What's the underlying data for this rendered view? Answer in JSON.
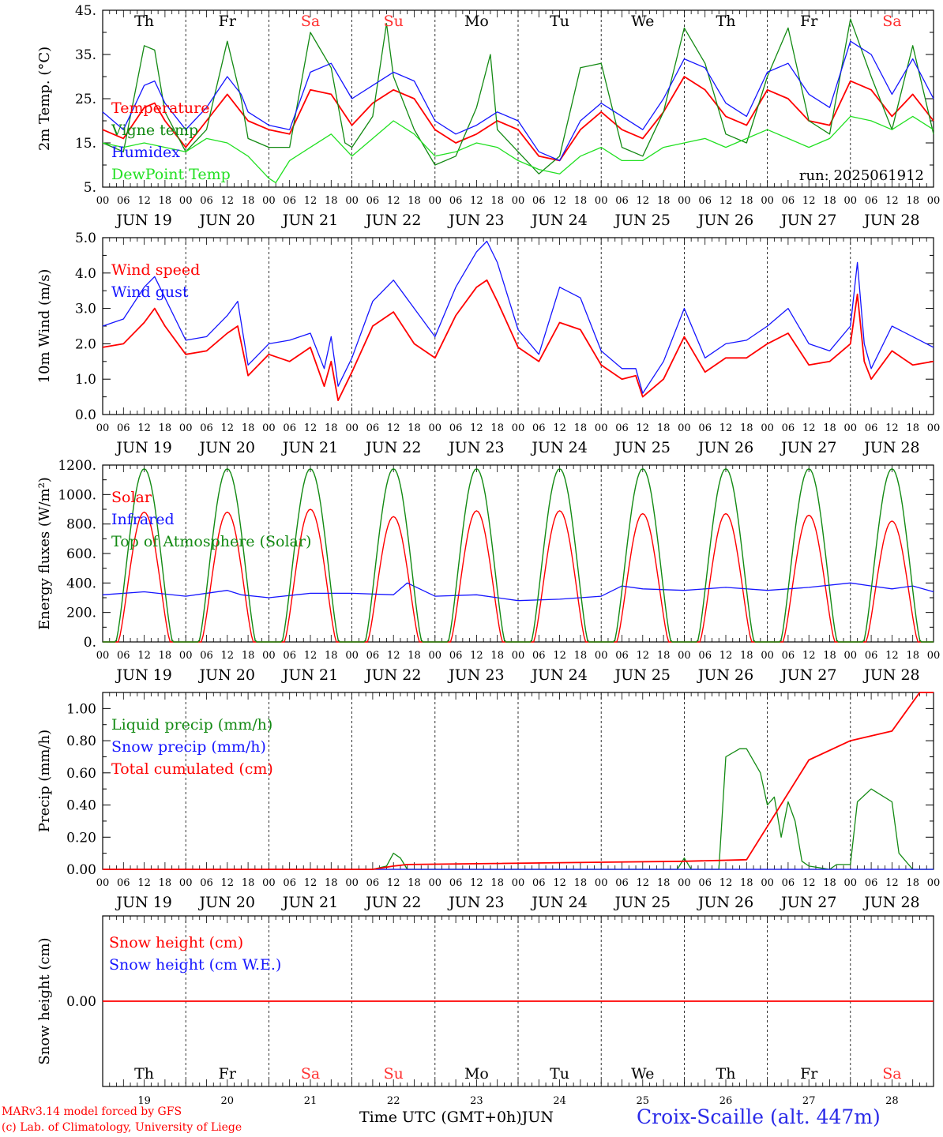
{
  "page": {
    "credit_line1": "MARv3.14 model forced by GFS",
    "credit_line2": "(c) Lab. of Climatology, University of Liege",
    "time_axis_label": "Time UTC (GMT+0h)",
    "month_label": "JUN",
    "station": "Croix-Scaille (alt. 447m)",
    "run_label": "run: 2025061912"
  },
  "colors": {
    "red": "#ff0000",
    "green": "#138a13",
    "blue": "#1515ff",
    "lightgreen": "#22e022",
    "axis": "#000000",
    "weekend": "#ff3030"
  },
  "days": [
    {
      "abbr": "Th",
      "date": "JUN 19",
      "num": "19",
      "weekend": false
    },
    {
      "abbr": "Fr",
      "date": "JUN 20",
      "num": "20",
      "weekend": false
    },
    {
      "abbr": "Sa",
      "date": "JUN 21",
      "num": "21",
      "weekend": true
    },
    {
      "abbr": "Su",
      "date": "JUN 22",
      "num": "22",
      "weekend": true
    },
    {
      "abbr": "Mo",
      "date": "JUN 23",
      "num": "23",
      "weekend": false
    },
    {
      "abbr": "Tu",
      "date": "JUN 24",
      "num": "24",
      "weekend": false
    },
    {
      "abbr": "We",
      "date": "JUN 25",
      "num": "25",
      "weekend": false
    },
    {
      "abbr": "Th",
      "date": "JUN 26",
      "num": "26",
      "weekend": false
    },
    {
      "abbr": "Fr",
      "date": "JUN 27",
      "num": "27",
      "weekend": false
    },
    {
      "abbr": "Sa",
      "date": "JUN 28",
      "num": "28",
      "weekend": true
    }
  ],
  "hour_ticks": [
    "00",
    "06",
    "12",
    "18"
  ],
  "chart_data": [
    {
      "type": "line",
      "ylabel": "2m Temp. (°C)",
      "ylim": [
        5,
        45
      ],
      "yticks": [
        "5.",
        "15.",
        "25.",
        "35.",
        "45."
      ],
      "x_unit": "hours since JUN 19 00 UTC",
      "series": [
        {
          "name": "Temperature",
          "color": "red",
          "x": [
            0,
            6,
            12,
            15,
            18,
            24,
            30,
            36,
            40,
            42,
            48,
            54,
            60,
            66,
            72,
            78,
            84,
            90,
            96,
            102,
            108,
            114,
            120,
            126,
            132,
            138,
            144,
            150,
            156,
            162,
            168,
            174,
            180,
            186,
            192,
            198,
            204,
            210,
            216,
            222,
            228,
            234,
            240
          ],
          "y": [
            18,
            16,
            23,
            24,
            20,
            14,
            20,
            26,
            22,
            20,
            18,
            17,
            27,
            26,
            19,
            24,
            27,
            25,
            18,
            15,
            17,
            20,
            18,
            12,
            11,
            18,
            22,
            18,
            16,
            22,
            30,
            27,
            21,
            19,
            27,
            25,
            20,
            19,
            29,
            27,
            21,
            26,
            20
          ]
        },
        {
          "name": "Vigne temp",
          "color": "green",
          "x": [
            0,
            6,
            12,
            15,
            18,
            24,
            30,
            36,
            40,
            42,
            48,
            54,
            60,
            66,
            70,
            72,
            78,
            82,
            84,
            90,
            96,
            102,
            108,
            112,
            114,
            120,
            126,
            132,
            138,
            144,
            150,
            156,
            162,
            168,
            174,
            180,
            186,
            192,
            198,
            204,
            210,
            216,
            222,
            228,
            234,
            240
          ],
          "y": [
            15,
            13,
            37,
            36,
            22,
            13,
            18,
            38,
            25,
            16,
            14,
            14,
            40,
            32,
            15,
            14,
            21,
            42,
            30,
            18,
            10,
            12,
            23,
            35,
            18,
            13,
            8,
            12,
            32,
            33,
            14,
            12,
            22,
            41,
            33,
            17,
            15,
            30,
            41,
            20,
            17,
            43,
            30,
            18,
            37,
            17
          ]
        },
        {
          "name": "Humidex",
          "color": "blue",
          "x": [
            0,
            6,
            12,
            15,
            18,
            24,
            30,
            36,
            40,
            42,
            48,
            54,
            60,
            66,
            72,
            78,
            84,
            90,
            96,
            102,
            108,
            114,
            120,
            126,
            132,
            138,
            144,
            150,
            156,
            162,
            168,
            174,
            180,
            186,
            192,
            198,
            204,
            210,
            216,
            222,
            228,
            234,
            240
          ],
          "y": [
            22,
            18,
            28,
            29,
            24,
            18,
            23,
            30,
            26,
            22,
            19,
            18,
            31,
            33,
            25,
            28,
            31,
            29,
            20,
            17,
            19,
            22,
            20,
            13,
            11,
            20,
            24,
            21,
            18,
            25,
            34,
            32,
            24,
            21,
            31,
            33,
            26,
            23,
            38,
            35,
            26,
            34,
            25
          ]
        },
        {
          "name": "DewPoint Temp",
          "color": "lightgreen",
          "x": [
            0,
            6,
            12,
            18,
            24,
            30,
            36,
            42,
            48,
            50,
            54,
            60,
            66,
            72,
            78,
            84,
            90,
            96,
            102,
            108,
            114,
            120,
            126,
            132,
            138,
            144,
            150,
            156,
            162,
            168,
            174,
            180,
            186,
            192,
            198,
            204,
            210,
            216,
            222,
            228,
            234,
            240
          ],
          "y": [
            15,
            14,
            15,
            14,
            13,
            16,
            15,
            12,
            7,
            6,
            11,
            14,
            17,
            12,
            16,
            20,
            17,
            12,
            13,
            15,
            14,
            11,
            9,
            8,
            12,
            14,
            11,
            11,
            14,
            15,
            16,
            14,
            16,
            18,
            16,
            14,
            16,
            21,
            20,
            18,
            21,
            18
          ]
        }
      ]
    },
    {
      "type": "line",
      "ylabel": "10m Wind (m/s)",
      "ylim": [
        0,
        5
      ],
      "yticks": [
        "0.0",
        "1.0",
        "2.0",
        "3.0",
        "4.0",
        "5.0"
      ],
      "x_unit": "hours since JUN 19 00 UTC",
      "series": [
        {
          "name": "Wind speed",
          "color": "red",
          "x": [
            0,
            6,
            12,
            15,
            18,
            24,
            30,
            36,
            39,
            42,
            48,
            54,
            60,
            64,
            66,
            68,
            72,
            78,
            84,
            90,
            96,
            102,
            108,
            111,
            114,
            120,
            126,
            132,
            138,
            144,
            150,
            154,
            156,
            162,
            168,
            174,
            180,
            186,
            192,
            198,
            204,
            210,
            216,
            218,
            220,
            222,
            228,
            234,
            240
          ],
          "y": [
            1.9,
            2.0,
            2.6,
            3.0,
            2.5,
            1.7,
            1.8,
            2.3,
            2.5,
            1.1,
            1.7,
            1.5,
            1.9,
            0.8,
            1.5,
            0.4,
            1.2,
            2.5,
            2.9,
            2.0,
            1.6,
            2.8,
            3.6,
            3.8,
            3.2,
            1.9,
            1.5,
            2.6,
            2.4,
            1.4,
            1.0,
            1.1,
            0.5,
            1.0,
            2.2,
            1.2,
            1.6,
            1.6,
            2.0,
            2.3,
            1.4,
            1.5,
            2.0,
            3.4,
            1.5,
            1.0,
            1.8,
            1.4,
            1.5
          ]
        },
        {
          "name": "Wind gust",
          "color": "blue",
          "x": [
            0,
            6,
            12,
            15,
            18,
            24,
            30,
            36,
            39,
            42,
            48,
            54,
            60,
            64,
            66,
            68,
            72,
            78,
            84,
            90,
            96,
            102,
            108,
            111,
            114,
            120,
            126,
            132,
            138,
            144,
            150,
            154,
            156,
            162,
            168,
            174,
            180,
            186,
            192,
            198,
            204,
            210,
            216,
            218,
            220,
            222,
            228,
            234,
            240
          ],
          "y": [
            2.5,
            2.7,
            3.6,
            3.9,
            3.3,
            2.1,
            2.2,
            2.8,
            3.2,
            1.4,
            2.0,
            2.1,
            2.3,
            1.3,
            2.2,
            0.8,
            1.6,
            3.2,
            3.8,
            3.0,
            2.2,
            3.6,
            4.6,
            4.9,
            4.3,
            2.4,
            1.7,
            3.6,
            3.3,
            1.8,
            1.3,
            1.3,
            0.6,
            1.5,
            3.0,
            1.6,
            2.0,
            2.1,
            2.5,
            3.0,
            2.0,
            1.8,
            2.5,
            4.3,
            2.0,
            1.3,
            2.5,
            2.2,
            1.9
          ]
        }
      ]
    },
    {
      "type": "line",
      "ylabel": "Energy fluxes (W/m²)",
      "ylim": [
        0,
        1200
      ],
      "yticks": [
        "0.",
        "200.",
        "400.",
        "600.",
        "800.",
        "1000.",
        "1200."
      ],
      "x_unit": "hours since JUN 19 00 UTC",
      "series": [
        {
          "name": "Solar",
          "color": "red",
          "peaks": [
            880,
            880,
            900,
            850,
            890,
            890,
            870,
            870,
            860,
            820
          ],
          "sunrise_hour": 4.5,
          "sunset_hour": 19.5
        },
        {
          "name": "Infrared",
          "color": "blue",
          "x": [
            0,
            12,
            24,
            36,
            40,
            48,
            60,
            72,
            84,
            88,
            96,
            108,
            120,
            132,
            144,
            150,
            156,
            168,
            180,
            192,
            204,
            216,
            222,
            228,
            234,
            240
          ],
          "y": [
            320,
            340,
            310,
            350,
            320,
            300,
            330,
            330,
            320,
            400,
            310,
            320,
            280,
            290,
            310,
            380,
            360,
            350,
            370,
            350,
            370,
            400,
            380,
            360,
            380,
            340
          ]
        },
        {
          "name": "Top of Atmosphere (Solar)",
          "color": "green",
          "peak": 1175,
          "sunrise_hour": 3.8,
          "sunset_hour": 20.2
        }
      ]
    },
    {
      "type": "line",
      "ylabel": "Precip (mm/h)",
      "ylim": [
        0,
        1.1
      ],
      "yticks": [
        "0.00",
        "0.20",
        "0.40",
        "0.60",
        "0.80",
        "1.00"
      ],
      "x_unit": "hours since JUN 19 00 UTC",
      "series": [
        {
          "name": "Liquid precip (mm/h)",
          "color": "green",
          "x": [
            0,
            78,
            82,
            84,
            86,
            88,
            96,
            144,
            166,
            168,
            170,
            178,
            180,
            184,
            186,
            190,
            192,
            194,
            196,
            198,
            200,
            202,
            204,
            210,
            212,
            216,
            218,
            222,
            228,
            230,
            234,
            236,
            240
          ],
          "y": [
            0,
            0,
            0.02,
            0.1,
            0.07,
            0,
            0,
            0,
            0,
            0.07,
            0,
            0,
            0.7,
            0.75,
            0.75,
            0.6,
            0.4,
            0.45,
            0.2,
            0.42,
            0.3,
            0.05,
            0.02,
            0,
            0.03,
            0.03,
            0.42,
            0.5,
            0.42,
            0.1,
            0,
            0,
            0
          ]
        },
        {
          "name": "Snow precip (mm/h)",
          "color": "blue",
          "x": [
            0,
            240
          ],
          "y": [
            0,
            0
          ]
        },
        {
          "name": "Total cumulated (cm)",
          "color": "red",
          "x": [
            0,
            78,
            84,
            88,
            168,
            186,
            204,
            216,
            228,
            236,
            240
          ],
          "y": [
            0,
            0,
            0.02,
            0.03,
            0.05,
            0.06,
            0.68,
            0.8,
            0.86,
            1.1,
            1.1
          ]
        }
      ]
    },
    {
      "type": "line",
      "ylabel": "Snow height (cm)",
      "ylim": [
        -1,
        1
      ],
      "yticks": [
        "0.00"
      ],
      "x_unit": "hours since JUN 19 00 UTC",
      "series": [
        {
          "name": "Snow height (cm)",
          "color": "red",
          "x": [
            0,
            240
          ],
          "y": [
            0,
            0
          ]
        },
        {
          "name": "Snow height (cm W.E.)",
          "color": "blue",
          "x": [],
          "y": []
        }
      ]
    }
  ]
}
